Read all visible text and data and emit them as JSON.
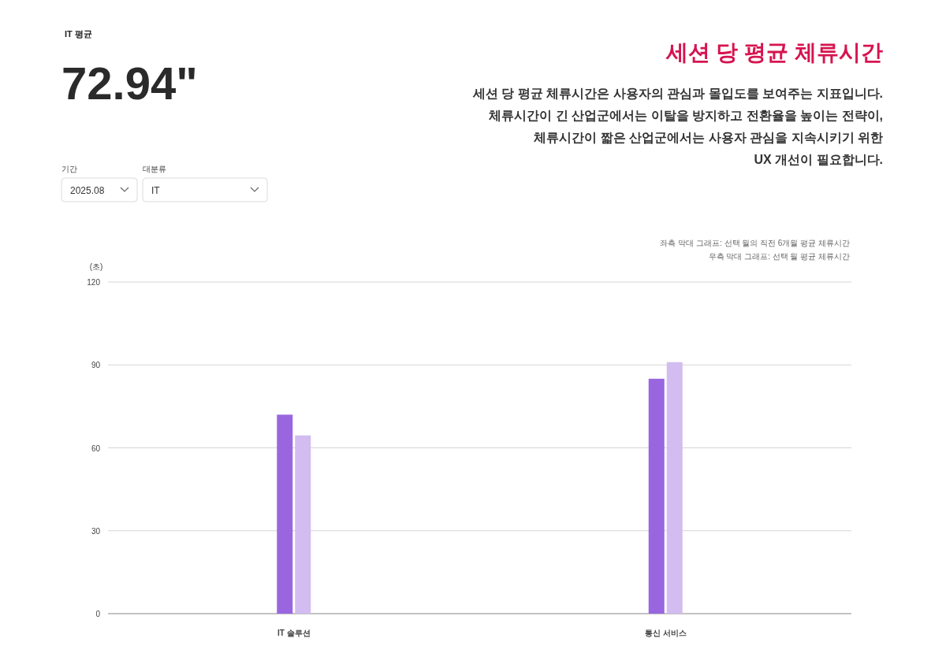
{
  "chart_data": {
    "type": "bar",
    "title": "세션 당 평균 체류시간",
    "subtitle": "세션 당 평균 체류시간은 사용자의 관심과 몰입도를 보여주는 지표입니다.\n체류시간이 긴 산업군에서는 이탈을 방지하고 전환율을 높이는 전략이,\n체류시간이 짧은 산업군에서는 사용자 관심을 지속시키기 위한\nUX 개선이 필요합니다.",
    "ylabel": "(초)",
    "annotations": [
      "IT 평균",
      "72.94\"",
      "기간",
      "2025.08",
      "대분류",
      "IT",
      "좌측 막대 그래프: 선택 월의 직전 6개월 평균 체류시간",
      "우측 막대 그래프: 선택 월 평균 체류시간"
    ],
    "categories": [
      "IT 솔루션",
      "통신 서비스"
    ],
    "series": [
      {
        "color": "#9966e0",
        "values": [
          72,
          85
        ]
      },
      {
        "color": "#d2bcf0",
        "values": [
          64.5,
          91
        ]
      }
    ],
    "ylim": [
      0,
      120
    ],
    "yticks": [
      0,
      30,
      60,
      90,
      120
    ],
    "grid": "y"
  }
}
